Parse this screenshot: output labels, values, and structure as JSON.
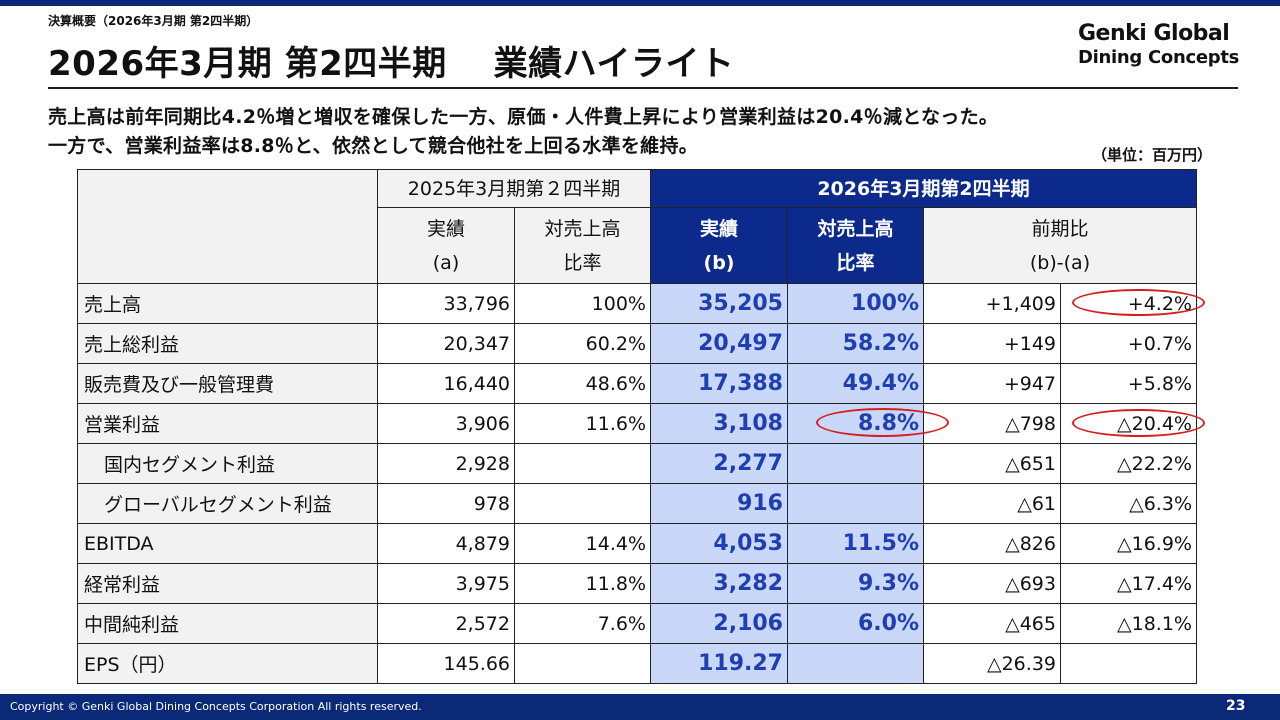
{
  "header": {
    "section_label": "決算概要（2026年3月期 第2四半期）",
    "title": "2026年3月期 第2四半期　 業績ハイライト",
    "logo_line1": "Genki Global",
    "logo_line2": "Dining Concepts"
  },
  "summary": {
    "line1": "売上高は前年同期比4.2％増と増収を確保した一方、原価・人件費上昇により営業利益は20.4％減となった。",
    "line2": "一方で、営業利益率は8.8％と、依然として競合他社を上回る水準を維持。",
    "unit": "（単位：百万円）"
  },
  "table": {
    "group_prev": "2025年3月期第２四半期",
    "group_curr": "2026年3月期第2四半期",
    "col_actual_prev": "実績",
    "col_actual_prev_sub": "(a)",
    "col_ratio_prev": "対売上高",
    "col_ratio_prev_sub": "比率",
    "col_actual_curr": "実績",
    "col_actual_curr_sub": "(b)",
    "col_ratio_curr": "対売上高",
    "col_ratio_curr_sub": "比率",
    "col_diff": "前期比",
    "col_diff_sub": "(b)-(a)",
    "rows": [
      {
        "label": "売上高",
        "a": "33,796",
        "ra": "100%",
        "b": "35,205",
        "rb": "100%",
        "d": "+1,409",
        "dp": "+4.2%"
      },
      {
        "label": "売上総利益",
        "a": "20,347",
        "ra": "60.2%",
        "b": "20,497",
        "rb": "58.2%",
        "d": "+149",
        "dp": "+0.7%"
      },
      {
        "label": "販売費及び一般管理費",
        "a": "16,440",
        "ra": "48.6%",
        "b": "17,388",
        "rb": "49.4%",
        "d": "+947",
        "dp": "+5.8%"
      },
      {
        "label": "営業利益",
        "a": "3,906",
        "ra": "11.6%",
        "b": "3,108",
        "rb": "8.8%",
        "d": "△798",
        "dp": "△20.4%"
      },
      {
        "label": "国内セグメント利益",
        "a": "2,928",
        "ra": "",
        "b": "2,277",
        "rb": "",
        "d": "△651",
        "dp": "△22.2%"
      },
      {
        "label": "グローバルセグメント利益",
        "a": "978",
        "ra": "",
        "b": "916",
        "rb": "",
        "d": "△61",
        "dp": "△6.3%"
      },
      {
        "label": "EBITDA",
        "a": "4,879",
        "ra": "14.4%",
        "b": "4,053",
        "rb": "11.5%",
        "d": "△826",
        "dp": "△16.9%"
      },
      {
        "label": "経常利益",
        "a": "3,975",
        "ra": "11.8%",
        "b": "3,282",
        "rb": "9.3%",
        "d": "△693",
        "dp": "△17.4%"
      },
      {
        "label": "中間純利益",
        "a": "2,572",
        "ra": "7.6%",
        "b": "2,106",
        "rb": "6.0%",
        "d": "△465",
        "dp": "△18.1%"
      },
      {
        "label": "EPS（円）",
        "a": "145.66",
        "ra": "",
        "b": "119.27",
        "rb": "",
        "d": "△26.39",
        "dp": ""
      }
    ]
  },
  "colors": {
    "brand_navy": "#0a2a78",
    "header_blue": "#0b2a8c",
    "highlight_fill": "#c9d7f8",
    "highlight_text": "#1d3fb3",
    "annotation_red": "#d42020"
  },
  "footer": {
    "copyright": "Copyright © Genki Global Dining Concepts Corporation All rights reserved.",
    "page_number": "23"
  }
}
